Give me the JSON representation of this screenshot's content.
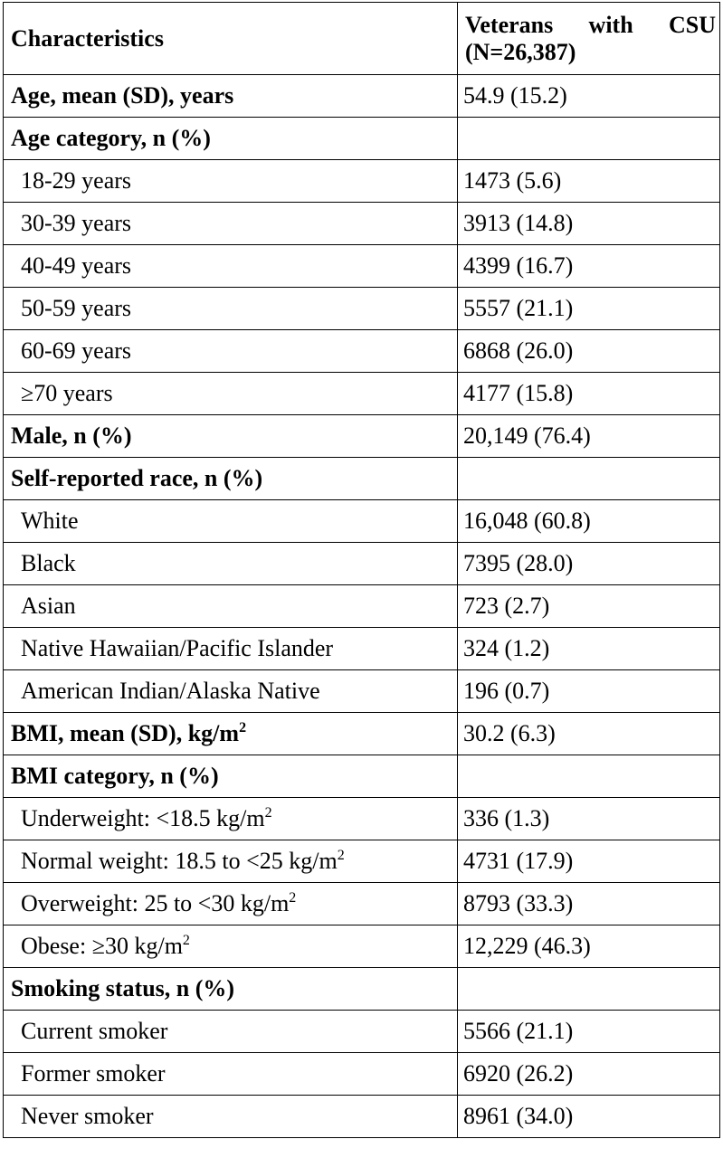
{
  "table": {
    "header": [
      "Characteristics",
      "Veterans with CSU (N=26,387)"
    ],
    "rows": [
      {
        "label": "Age, mean (SD), years",
        "value": "54.9 (15.2)",
        "style": "heading"
      },
      {
        "label": "Age category, n (%)",
        "value": "",
        "style": "heading"
      },
      {
        "label": "18-29 years",
        "value": "1473 (5.6)",
        "style": "item"
      },
      {
        "label": "30-39 years",
        "value": "3913 (14.8)",
        "style": "item"
      },
      {
        "label": "40-49 years",
        "value": "4399 (16.7)",
        "style": "item"
      },
      {
        "label": "50-59 years",
        "value": "5557 (21.1)",
        "style": "item"
      },
      {
        "label": "60-69 years",
        "value": "6868 (26.0)",
        "style": "item"
      },
      {
        "label": "≥70 years",
        "value": "4177 (15.8)",
        "style": "item"
      },
      {
        "label": "Male, n (%)",
        "value": "20,149 (76.4)",
        "style": "heading"
      },
      {
        "label": "Self-reported race, n (%)",
        "value": "",
        "style": "heading"
      },
      {
        "label": "White",
        "value": "16,048 (60.8)",
        "style": "item"
      },
      {
        "label": "Black",
        "value": "7395 (28.0)",
        "style": "item"
      },
      {
        "label": "Asian",
        "value": "723 (2.7)",
        "style": "item"
      },
      {
        "label": "Native Hawaiian/Pacific Islander",
        "value": "324 (1.2)",
        "style": "item"
      },
      {
        "label": "American Indian/Alaska Native",
        "value": "196 (0.7)",
        "style": "item"
      },
      {
        "label": "BMI, mean (SD), kg/m",
        "label_sup": "2",
        "value": "30.2 (6.3)",
        "style": "heading"
      },
      {
        "label": "BMI category, n (%)",
        "value": "",
        "style": "heading"
      },
      {
        "label": "Underweight: <18.5 kg/m",
        "label_sup": "2",
        "value": "336 (1.3)",
        "style": "item"
      },
      {
        "label": "Normal weight: 18.5 to <25 kg/m",
        "label_sup": "2",
        "value": "4731 (17.9)",
        "style": "item"
      },
      {
        "label": "Overweight: 25 to <30 kg/m",
        "label_sup": "2",
        "value": "8793 (33.3)",
        "style": "item"
      },
      {
        "label": "Obese: ≥30 kg/m",
        "label_sup": "2",
        "value": "12,229 (46.3)",
        "style": "item"
      },
      {
        "label": "Smoking status, n (%)",
        "value": "",
        "style": "heading"
      },
      {
        "label": "Current smoker",
        "value": "5566 (21.1)",
        "style": "item"
      },
      {
        "label": "Former smoker",
        "value": "6920 (26.2)",
        "style": "item"
      },
      {
        "label": "Never smoker",
        "value": "8961 (34.0)",
        "style": "item"
      }
    ]
  }
}
